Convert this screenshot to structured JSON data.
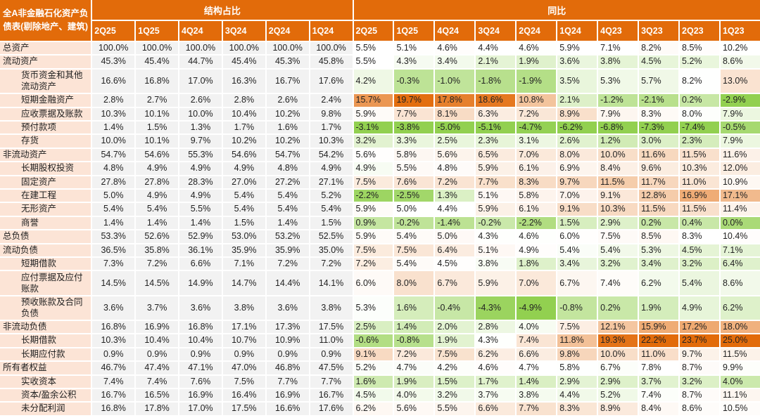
{
  "chart_data": {
    "type": "heatmap",
    "title": "全A非金融石化资产负债表(剔除地产、建筑)",
    "group_structure": "结构占比",
    "group_yoy": "同比",
    "structure_columns": [
      "2Q25",
      "1Q25",
      "4Q24",
      "3Q24",
      "2Q24",
      "1Q24"
    ],
    "yoy_columns": [
      "2Q25",
      "1Q25",
      "4Q24",
      "3Q24",
      "2Q24",
      "1Q24",
      "4Q23",
      "3Q23",
      "2Q23",
      "1Q23"
    ],
    "colors": {
      "header": "#e26b0a",
      "label_bg": "#fce4d6",
      "structure_bg": "#f2f2f2",
      "low": "#92d050",
      "mid": "#ffffff",
      "high": "#e26b0a"
    },
    "rows": [
      {
        "label": "总资产",
        "indent": false,
        "structure": [
          "100.0%",
          "100.0%",
          "100.0%",
          "100.0%",
          "100.0%",
          "100.0%"
        ],
        "yoy": [
          "5.5%",
          "5.1%",
          "4.6%",
          "4.4%",
          "4.6%",
          "5.9%",
          "7.1%",
          "8.2%",
          "8.5%",
          "10.2%"
        ]
      },
      {
        "label": "流动资产",
        "indent": false,
        "structure": [
          "45.3%",
          "45.4%",
          "44.7%",
          "45.4%",
          "45.3%",
          "45.8%"
        ],
        "yoy": [
          "5.5%",
          "4.3%",
          "3.4%",
          "2.1%",
          "1.9%",
          "3.6%",
          "3.8%",
          "4.5%",
          "5.2%",
          "8.6%"
        ]
      },
      {
        "label": "货币资金和其他流动资产",
        "indent": true,
        "double": true,
        "structure": [
          "16.6%",
          "16.8%",
          "17.0%",
          "16.3%",
          "16.7%",
          "17.6%"
        ],
        "yoy": [
          "4.2%",
          "-0.3%",
          "-1.0%",
          "-1.8%",
          "-1.9%",
          "3.5%",
          "5.3%",
          "5.7%",
          "8.2%",
          "13.0%"
        ]
      },
      {
        "label": "短期金融资产",
        "indent": true,
        "structure": [
          "2.8%",
          "2.7%",
          "2.6%",
          "2.8%",
          "2.6%",
          "2.4%"
        ],
        "yoy": [
          "15.7%",
          "19.7%",
          "17.8%",
          "18.6%",
          "10.8%",
          "2.1%",
          "-1.2%",
          "-2.1%",
          "0.2%",
          "-2.9%"
        ]
      },
      {
        "label": "应收票据及账款",
        "indent": true,
        "structure": [
          "10.3%",
          "10.1%",
          "10.0%",
          "10.4%",
          "10.2%",
          "9.8%"
        ],
        "yoy": [
          "5.9%",
          "7.7%",
          "8.1%",
          "6.3%",
          "7.2%",
          "8.9%",
          "7.9%",
          "8.3%",
          "8.0%",
          "7.9%"
        ]
      },
      {
        "label": "预付款项",
        "indent": true,
        "structure": [
          "1.4%",
          "1.5%",
          "1.3%",
          "1.7%",
          "1.6%",
          "1.7%"
        ],
        "yoy": [
          "-3.1%",
          "-3.8%",
          "-5.0%",
          "-5.1%",
          "-4.7%",
          "-6.2%",
          "-6.8%",
          "-7.3%",
          "-7.4%",
          "-0.5%"
        ]
      },
      {
        "label": "存货",
        "indent": true,
        "structure": [
          "10.0%",
          "10.1%",
          "9.7%",
          "10.2%",
          "10.2%",
          "10.3%"
        ],
        "yoy": [
          "3.2%",
          "3.3%",
          "2.5%",
          "2.3%",
          "3.1%",
          "2.6%",
          "1.2%",
          "3.0%",
          "2.3%",
          "7.9%"
        ]
      },
      {
        "label": "非流动资产",
        "indent": false,
        "structure": [
          "54.7%",
          "54.6%",
          "55.3%",
          "54.6%",
          "54.7%",
          "54.2%"
        ],
        "yoy": [
          "5.6%",
          "5.8%",
          "5.6%",
          "6.5%",
          "7.0%",
          "8.0%",
          "10.0%",
          "11.6%",
          "11.5%",
          "11.6%"
        ]
      },
      {
        "label": "长期股权投资",
        "indent": true,
        "structure": [
          "4.8%",
          "4.9%",
          "4.9%",
          "4.9%",
          "4.8%",
          "4.9%"
        ],
        "yoy": [
          "4.9%",
          "5.5%",
          "4.8%",
          "5.9%",
          "6.1%",
          "6.9%",
          "8.4%",
          "9.6%",
          "10.3%",
          "12.0%"
        ]
      },
      {
        "label": "固定资产",
        "indent": true,
        "structure": [
          "27.8%",
          "27.8%",
          "28.3%",
          "27.0%",
          "27.2%",
          "27.1%"
        ],
        "yoy": [
          "7.5%",
          "7.6%",
          "7.2%",
          "7.7%",
          "8.3%",
          "9.7%",
          "11.5%",
          "11.7%",
          "11.0%",
          "10.9%"
        ]
      },
      {
        "label": "在建工程",
        "indent": true,
        "structure": [
          "5.0%",
          "4.9%",
          "4.9%",
          "5.4%",
          "5.4%",
          "5.2%"
        ],
        "yoy": [
          "-2.2%",
          "-2.5%",
          "1.3%",
          "5.1%",
          "5.8%",
          "7.0%",
          "9.1%",
          "12.8%",
          "16.9%",
          "17.1%"
        ]
      },
      {
        "label": "无形资产",
        "indent": true,
        "structure": [
          "5.4%",
          "5.4%",
          "5.5%",
          "5.4%",
          "5.4%",
          "5.4%"
        ],
        "yoy": [
          "5.9%",
          "5.0%",
          "4.4%",
          "5.9%",
          "6.1%",
          "9.1%",
          "10.3%",
          "11.5%",
          "11.5%",
          "11.4%"
        ]
      },
      {
        "label": "商誉",
        "indent": true,
        "structure": [
          "1.4%",
          "1.4%",
          "1.4%",
          "1.5%",
          "1.4%",
          "1.5%"
        ],
        "yoy": [
          "0.9%",
          "-0.2%",
          "-1.4%",
          "-0.2%",
          "-2.2%",
          "1.5%",
          "2.9%",
          "0.2%",
          "0.4%",
          "0.0%"
        ]
      },
      {
        "label": "总负债",
        "indent": false,
        "structure": [
          "53.3%",
          "52.6%",
          "52.9%",
          "53.0%",
          "53.2%",
          "52.5%"
        ],
        "yoy": [
          "5.9%",
          "5.4%",
          "5.0%",
          "4.3%",
          "4.6%",
          "6.0%",
          "7.5%",
          "8.5%",
          "8.3%",
          "10.4%"
        ]
      },
      {
        "label": "流动负债",
        "indent": false,
        "structure": [
          "36.5%",
          "35.8%",
          "36.1%",
          "35.9%",
          "35.9%",
          "35.0%"
        ],
        "yoy": [
          "7.5%",
          "7.5%",
          "6.4%",
          "5.1%",
          "4.9%",
          "5.4%",
          "5.4%",
          "5.3%",
          "4.5%",
          "7.1%"
        ]
      },
      {
        "label": "短期借款",
        "indent": true,
        "structure": [
          "7.3%",
          "7.2%",
          "6.6%",
          "7.1%",
          "7.2%",
          "7.2%"
        ],
        "yoy": [
          "7.2%",
          "5.4%",
          "4.5%",
          "3.8%",
          "1.8%",
          "3.4%",
          "3.2%",
          "3.4%",
          "3.2%",
          "6.4%"
        ]
      },
      {
        "label": "应付票据及应付账款",
        "indent": true,
        "double": true,
        "structure": [
          "14.5%",
          "14.5%",
          "14.9%",
          "14.7%",
          "14.4%",
          "14.1%"
        ],
        "yoy": [
          "6.0%",
          "8.0%",
          "6.7%",
          "5.9%",
          "7.0%",
          "6.7%",
          "7.4%",
          "6.2%",
          "5.4%",
          "8.6%"
        ]
      },
      {
        "label": "预收账款及合同负债",
        "indent": true,
        "double": true,
        "structure": [
          "3.6%",
          "3.7%",
          "3.6%",
          "3.8%",
          "3.6%",
          "3.8%"
        ],
        "yoy": [
          "5.3%",
          "1.6%",
          "-0.4%",
          "-4.3%",
          "-4.9%",
          "-0.8%",
          "0.2%",
          "1.9%",
          "4.9%",
          "6.2%"
        ]
      },
      {
        "label": "非流动负债",
        "indent": false,
        "structure": [
          "16.8%",
          "16.9%",
          "16.8%",
          "17.1%",
          "17.3%",
          "17.5%"
        ],
        "yoy": [
          "2.5%",
          "1.4%",
          "2.0%",
          "2.8%",
          "4.0%",
          "7.5%",
          "12.1%",
          "15.9%",
          "17.2%",
          "18.0%"
        ]
      },
      {
        "label": "长期借款",
        "indent": true,
        "structure": [
          "10.3%",
          "10.4%",
          "10.4%",
          "10.7%",
          "10.9%",
          "11.0%"
        ],
        "yoy": [
          "-0.6%",
          "-0.8%",
          "1.9%",
          "4.3%",
          "7.4%",
          "11.8%",
          "19.3%",
          "22.2%",
          "23.7%",
          "25.0%"
        ]
      },
      {
        "label": "长期应付款",
        "indent": true,
        "structure": [
          "0.9%",
          "0.9%",
          "0.9%",
          "0.9%",
          "0.9%",
          "0.9%"
        ],
        "yoy": [
          "9.1%",
          "7.2%",
          "7.5%",
          "6.2%",
          "6.6%",
          "9.8%",
          "10.0%",
          "11.0%",
          "9.7%",
          "11.5%"
        ]
      },
      {
        "label": "所有者权益",
        "indent": false,
        "structure": [
          "46.7%",
          "47.4%",
          "47.1%",
          "47.0%",
          "46.8%",
          "47.5%"
        ],
        "yoy": [
          "5.2%",
          "4.7%",
          "4.2%",
          "4.6%",
          "4.7%",
          "5.8%",
          "6.7%",
          "7.8%",
          "8.7%",
          "9.9%"
        ]
      },
      {
        "label": "实收资本",
        "indent": true,
        "structure": [
          "7.4%",
          "7.4%",
          "7.6%",
          "7.5%",
          "7.7%",
          "7.7%"
        ],
        "yoy": [
          "1.6%",
          "1.9%",
          "1.5%",
          "1.7%",
          "1.4%",
          "2.9%",
          "2.9%",
          "3.7%",
          "3.2%",
          "4.0%"
        ]
      },
      {
        "label": "资本/盈余公积",
        "indent": true,
        "structure": [
          "16.7%",
          "16.5%",
          "16.9%",
          "16.4%",
          "16.9%",
          "16.7%"
        ],
        "yoy": [
          "4.5%",
          "4.0%",
          "3.2%",
          "3.7%",
          "3.8%",
          "4.4%",
          "5.2%",
          "7.4%",
          "8.7%",
          "11.1%"
        ]
      },
      {
        "label": "未分配利润",
        "indent": true,
        "structure": [
          "16.8%",
          "17.8%",
          "17.0%",
          "17.5%",
          "16.6%",
          "17.6%"
        ],
        "yoy": [
          "6.2%",
          "5.6%",
          "5.5%",
          "6.6%",
          "7.7%",
          "8.3%",
          "8.9%",
          "8.4%",
          "8.6%",
          "10.5%"
        ]
      }
    ]
  }
}
